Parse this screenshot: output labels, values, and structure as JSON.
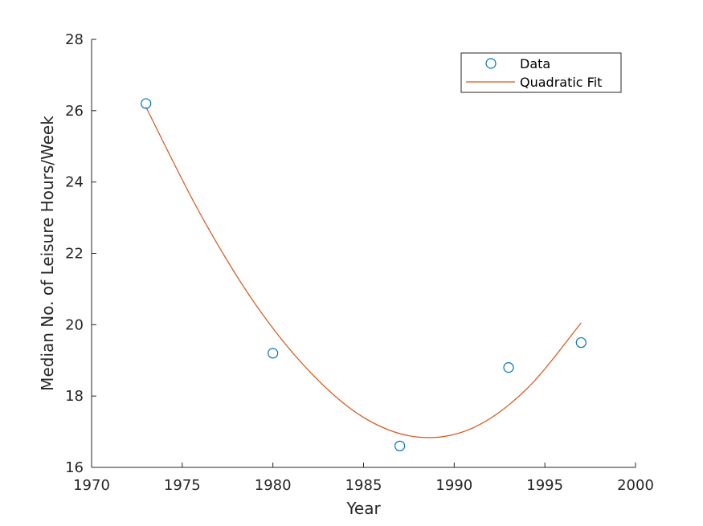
{
  "chart_data": {
    "type": "scatter",
    "title": "",
    "xlabel": "Year",
    "ylabel": "Median No. of Leisure Hours/Week",
    "xlim": [
      1970,
      2000
    ],
    "ylim": [
      16,
      28
    ],
    "xticks": [
      1970,
      1975,
      1980,
      1985,
      1990,
      1995,
      2000
    ],
    "yticks": [
      16,
      18,
      20,
      22,
      24,
      26,
      28
    ],
    "grid": false,
    "legend_position": "top-right",
    "colors": {
      "data": "#0072BD",
      "fit": "#D95319",
      "axis": "#262626"
    },
    "series": [
      {
        "name": "Data",
        "kind": "markers",
        "marker": "circle",
        "x": [
          1973,
          1980,
          1987,
          1993,
          1997
        ],
        "y": [
          26.2,
          19.2,
          16.6,
          18.8,
          19.5
        ]
      },
      {
        "name": "Quadratic Fit",
        "kind": "line",
        "x": [
          1973,
          1976,
          1979,
          1982,
          1985,
          1988,
          1991,
          1994,
          1997
        ],
        "y": [
          26.1,
          23.1,
          20.6,
          18.7,
          17.4,
          16.85,
          17.1,
          18.2,
          20.05
        ]
      }
    ]
  }
}
